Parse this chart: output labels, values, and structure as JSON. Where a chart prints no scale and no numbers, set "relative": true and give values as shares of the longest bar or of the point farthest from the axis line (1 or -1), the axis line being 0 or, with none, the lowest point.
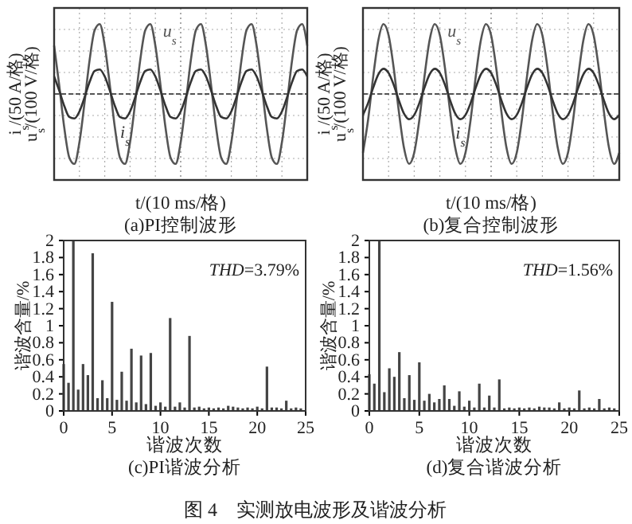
{
  "chart_data": [
    {
      "type": "line",
      "relative": true,
      "ref_lines": [
        {
          "axis": "y",
          "value": 0,
          "color": "#555555",
          "line_style": "dashed"
        }
      ],
      "title": "(a)PI控制波形",
      "xlabel": "t/(10 ms/格)",
      "ylabel": "i$_{s}$/(50 A/格)\nu$_{s}$/(100 V/格)",
      "grid": true,
      "categories": [
        null,
        null,
        null,
        null,
        null,
        null,
        null,
        null,
        null,
        null,
        null,
        null,
        null,
        null,
        null,
        null,
        null,
        null,
        null,
        null,
        null,
        null,
        null,
        null,
        null,
        null,
        null,
        null,
        null,
        null,
        null,
        null,
        null,
        null,
        null,
        null,
        null,
        null,
        null,
        null,
        null,
        null,
        null,
        null,
        null,
        null,
        null,
        null,
        null,
        null,
        null
      ],
      "series": [
        {
          "name": "u$_{s}$",
          "color": "#555555",
          "values": [
            0.69,
            0.13,
            -0.48,
            -0.91,
            -1,
            -0.69,
            -0.13,
            0.48,
            0.91,
            1,
            0.69,
            0.13,
            -0.48,
            -0.91,
            -1,
            -0.69,
            -0.13,
            0.48,
            0.91,
            1,
            0.69,
            0.13,
            -0.48,
            -0.91,
            -1,
            -0.69,
            -0.13,
            0.48,
            0.91,
            1,
            0.69,
            0.13,
            -0.48,
            -0.91,
            -1,
            -0.69,
            -0.13,
            0.48,
            0.91,
            1,
            0.69,
            0.13,
            -0.48,
            -0.91,
            -1,
            -0.69,
            -0.13,
            0.48,
            0.91,
            1,
            0.69
          ]
        },
        {
          "name": "i$_{s}$",
          "color": "#333333",
          "values": [
            0.25,
            0.05,
            -0.17,
            -0.33,
            -0.35,
            -0.25,
            -0.05,
            0.17,
            0.33,
            0.35,
            0.25,
            0.05,
            -0.17,
            -0.33,
            -0.35,
            -0.25,
            -0.05,
            0.17,
            0.33,
            0.35,
            0.25,
            0.05,
            -0.17,
            -0.33,
            -0.35,
            -0.25,
            -0.05,
            0.17,
            0.33,
            0.35,
            0.25,
            0.05,
            -0.17,
            -0.33,
            -0.35,
            -0.25,
            -0.05,
            0.17,
            0.33,
            0.35,
            0.25,
            0.05,
            -0.17,
            -0.33,
            -0.35,
            -0.25,
            -0.05,
            0.17,
            0.33,
            0.35,
            0.25
          ]
        }
      ]
    },
    {
      "type": "line",
      "relative": true,
      "ref_lines": [
        {
          "axis": "y",
          "value": 0,
          "color": "#555555",
          "line_style": "dashed"
        }
      ],
      "title": "(b)复合控制波形",
      "xlabel": "t/(10 ms/格)",
      "ylabel": "i$_{s}$/(50 A/格)\nu$_{s}$/(100 V/格)",
      "grid": true,
      "categories": [
        null,
        null,
        null,
        null,
        null,
        null,
        null,
        null,
        null,
        null,
        null,
        null,
        null,
        null,
        null,
        null,
        null,
        null,
        null,
        null,
        null,
        null,
        null,
        null,
        null,
        null,
        null,
        null,
        null,
        null,
        null,
        null,
        null,
        null,
        null,
        null,
        null,
        null,
        null,
        null,
        null,
        null,
        null,
        null,
        null,
        null,
        null,
        null,
        null,
        null,
        null
      ],
      "series": [
        {
          "name": "u$_{s}$",
          "color": "#555555",
          "values": [
            -0.84,
            -0.37,
            0.25,
            0.77,
            1,
            0.84,
            0.37,
            -0.25,
            -0.77,
            -1,
            -0.84,
            -0.37,
            0.25,
            0.77,
            1,
            0.84,
            0.37,
            -0.25,
            -0.77,
            -1,
            -0.84,
            -0.37,
            0.25,
            0.77,
            1,
            0.84,
            0.37,
            -0.25,
            -0.77,
            -1,
            -0.84,
            -0.37,
            0.25,
            0.77,
            1,
            0.84,
            0.37,
            -0.25,
            -0.77,
            -1,
            -0.84,
            -0.37,
            0.25,
            0.77,
            1,
            0.84,
            0.37,
            -0.25,
            -0.77,
            -1,
            -0.84
          ]
        },
        {
          "name": "i$_{s}$",
          "color": "#333333",
          "values": [
            -0.3,
            -0.13,
            0.09,
            0.28,
            0.36,
            0.3,
            0.13,
            -0.09,
            -0.28,
            -0.36,
            -0.3,
            -0.13,
            0.09,
            0.28,
            0.36,
            0.3,
            0.13,
            -0.09,
            -0.28,
            -0.36,
            -0.3,
            -0.13,
            0.09,
            0.28,
            0.36,
            0.3,
            0.13,
            -0.09,
            -0.28,
            -0.36,
            -0.3,
            -0.13,
            0.09,
            0.28,
            0.36,
            0.3,
            0.13,
            -0.09,
            -0.28,
            -0.36,
            -0.3,
            -0.13,
            0.09,
            0.28,
            0.36,
            0.3,
            0.13,
            -0.09,
            -0.28,
            -0.36,
            -0.3
          ]
        }
      ]
    },
    {
      "type": "bar",
      "title": "(c)PI谐波分析",
      "xlabel": "谐波次数",
      "ylabel": "谐波含量/%",
      "annotations": [
        "THD=3.79%"
      ],
      "xlim": [
        0,
        25
      ],
      "xticks": [
        0,
        5,
        10,
        15,
        20,
        25
      ],
      "ylim": [
        0,
        2
      ],
      "yticks": [
        0,
        0.2,
        0.4,
        0.6,
        0.8,
        1,
        1.2,
        1.4,
        1.6,
        1.8,
        2
      ],
      "x": [
        0,
        0.5,
        1,
        1.5,
        2,
        2.5,
        3,
        3.5,
        4,
        4.5,
        5,
        5.5,
        6,
        6.5,
        7,
        7.5,
        8,
        8.5,
        9,
        9.5,
        10,
        10.5,
        11,
        11.5,
        12,
        12.5,
        13,
        13.5,
        14,
        14.5,
        15,
        15.5,
        16,
        16.5,
        17,
        17.5,
        18,
        18.5,
        19,
        19.5,
        20,
        20.5,
        21,
        21.5,
        22,
        22.5,
        23,
        23.5,
        24,
        24.5
      ],
      "series": [
        {
          "color": "#444444",
          "values": [
            0.55,
            0.33,
            2,
            0.25,
            0.55,
            0.42,
            1.85,
            0.15,
            0.36,
            0.15,
            1.28,
            0.13,
            0.46,
            0.12,
            0.73,
            0.1,
            0.65,
            0.08,
            0.68,
            0.06,
            0.1,
            0.05,
            1.09,
            0.05,
            0.1,
            0.04,
            0.88,
            0.04,
            0.05,
            0.03,
            0.04,
            0.03,
            0.04,
            0.03,
            0.06,
            0.05,
            0.04,
            0.03,
            0.04,
            0.03,
            0.05,
            0.03,
            0.52,
            0.04,
            0.04,
            0.03,
            0.12,
            0.03,
            0.04,
            0.03
          ]
        }
      ]
    },
    {
      "type": "bar",
      "title": "(d)复合谐波分析",
      "xlabel": "谐波次数",
      "ylabel": "谐波含量/%",
      "annotations": [
        "THD=1.56%",
        "图 4　实测放电波形及谐波分析"
      ],
      "xlim": [
        0,
        25
      ],
      "xticks": [
        0,
        5,
        10,
        15,
        20,
        25
      ],
      "ylim": [
        0,
        2
      ],
      "yticks": [
        0,
        0.2,
        0.4,
        0.6,
        0.8,
        1,
        1.2,
        1.4,
        1.6,
        1.8,
        2
      ],
      "x": [
        0,
        0.5,
        1,
        1.5,
        2,
        2.5,
        3,
        3.5,
        4,
        4.5,
        5,
        5.5,
        6,
        6.5,
        7,
        7.5,
        8,
        8.5,
        9,
        9.5,
        10,
        10.5,
        11,
        11.5,
        12,
        12.5,
        13,
        13.5,
        14,
        14.5,
        15,
        15.5,
        16,
        16.5,
        17,
        17.5,
        18,
        18.5,
        19,
        19.5,
        20,
        20.5,
        21,
        21.5,
        22,
        22.5,
        23,
        23.5,
        24,
        24.5
      ],
      "series": [
        {
          "color": "#444444",
          "values": [
            0.43,
            0.32,
            2,
            0.22,
            0.5,
            0.4,
            0.69,
            0.15,
            0.42,
            0.13,
            0.57,
            0.12,
            0.2,
            0.1,
            0.14,
            0.3,
            0.14,
            0.06,
            0.23,
            0.05,
            0.12,
            0.04,
            0.32,
            0.04,
            0.18,
            0.04,
            0.37,
            0.03,
            0.04,
            0.03,
            0.04,
            0.03,
            0.04,
            0.03,
            0.05,
            0.04,
            0.04,
            0.03,
            0.1,
            0.03,
            0.04,
            0.03,
            0.24,
            0.03,
            0.04,
            0.03,
            0.14,
            0.03,
            0.04,
            0.03
          ]
        }
      ]
    }
  ]
}
